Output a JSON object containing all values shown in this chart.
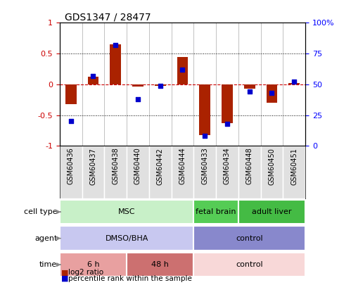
{
  "title": "GDS1347 / 28477",
  "samples": [
    "GSM60436",
    "GSM60437",
    "GSM60438",
    "GSM60440",
    "GSM60442",
    "GSM60444",
    "GSM60433",
    "GSM60434",
    "GSM60448",
    "GSM60450",
    "GSM60451"
  ],
  "log2_ratio": [
    -0.32,
    0.12,
    0.65,
    -0.03,
    -0.02,
    0.45,
    -0.82,
    -0.63,
    -0.07,
    -0.3,
    0.02
  ],
  "percentile_rank": [
    20,
    57,
    82,
    38,
    49,
    62,
    8,
    18,
    44,
    43,
    52
  ],
  "cell_type_groups": [
    {
      "label": "MSC",
      "start": 0,
      "end": 6,
      "color": "#c8f0c8"
    },
    {
      "label": "fetal brain",
      "start": 6,
      "end": 8,
      "color": "#55cc55"
    },
    {
      "label": "adult liver",
      "start": 8,
      "end": 11,
      "color": "#44bb44"
    }
  ],
  "agent_groups": [
    {
      "label": "DMSO/BHA",
      "start": 0,
      "end": 6,
      "color": "#c8c8f0"
    },
    {
      "label": "control",
      "start": 6,
      "end": 11,
      "color": "#8888cc"
    }
  ],
  "time_groups": [
    {
      "label": "6 h",
      "start": 0,
      "end": 3,
      "color": "#e8a0a0"
    },
    {
      "label": "48 h",
      "start": 3,
      "end": 6,
      "color": "#cc7070"
    },
    {
      "label": "control",
      "start": 6,
      "end": 11,
      "color": "#f8d8d8"
    }
  ],
  "bar_color": "#aa2200",
  "dot_color": "#0000cc",
  "zero_line_color": "#cc0000",
  "grid_color": "#000000",
  "ylim_left": [
    -1,
    1
  ],
  "ylim_right": [
    0,
    100
  ],
  "yticks_left": [
    -1,
    -0.5,
    0,
    0.5,
    1
  ],
  "yticks_right": [
    0,
    25,
    50,
    75,
    100
  ],
  "ytick_labels_right": [
    "0",
    "25",
    "50",
    "75",
    "100%"
  ],
  "hgrid_vals": [
    -0.5,
    0.5
  ],
  "row_labels": [
    "cell type",
    "agent",
    "time"
  ],
  "legend_items": [
    "log2 ratio",
    "percentile rank within the sample"
  ],
  "sample_bg": "#e0e0e0"
}
